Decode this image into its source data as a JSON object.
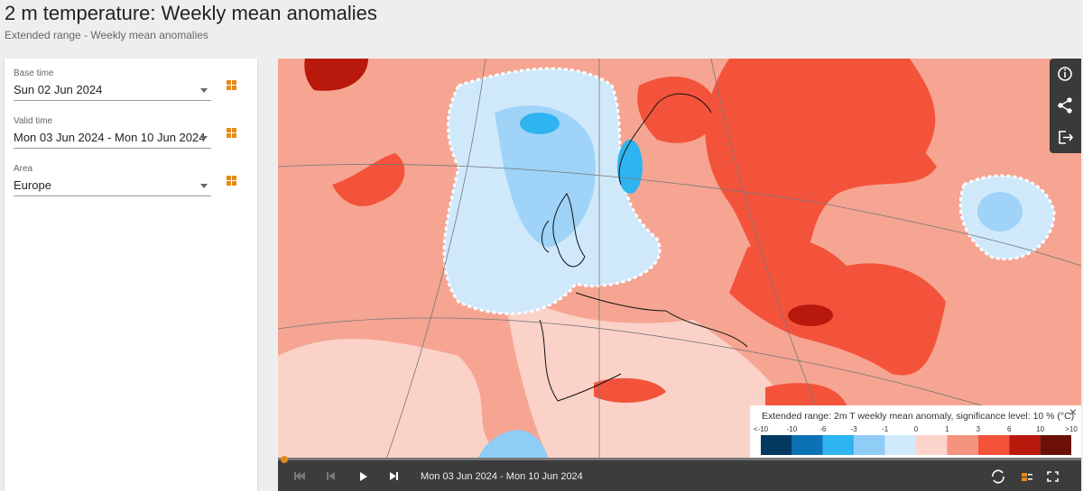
{
  "header": {
    "title": "2 m temperature: Weekly mean anomalies",
    "subtitle": "Extended range - Weekly mean anomalies"
  },
  "fields": [
    {
      "label": "Base time",
      "value": "Sun 02 Jun 2024"
    },
    {
      "label": "Valid time",
      "value": "Mon 03 Jun 2024 - Mon 10 Jun 2024"
    },
    {
      "label": "Area",
      "value": "Europe"
    }
  ],
  "legend": {
    "title": "Extended range: 2m T weekly mean anomaly, significance level: 10 % (°C)",
    "labels": [
      "<-10",
      "-10",
      "-6",
      "-3",
      "-1",
      "0",
      "1",
      "3",
      "6",
      "10",
      ">10"
    ],
    "colors": [
      "#013a5e",
      "#0a72b5",
      "#2eb4f0",
      "#8fcdf6",
      "#cfeafb",
      "#fcd3ca",
      "#f5937f",
      "#f4533b",
      "#b8190c",
      "#6b1009"
    ]
  },
  "player": {
    "label": "Mon 03 Jun 2024 - Mon 10 Jun 2024"
  }
}
